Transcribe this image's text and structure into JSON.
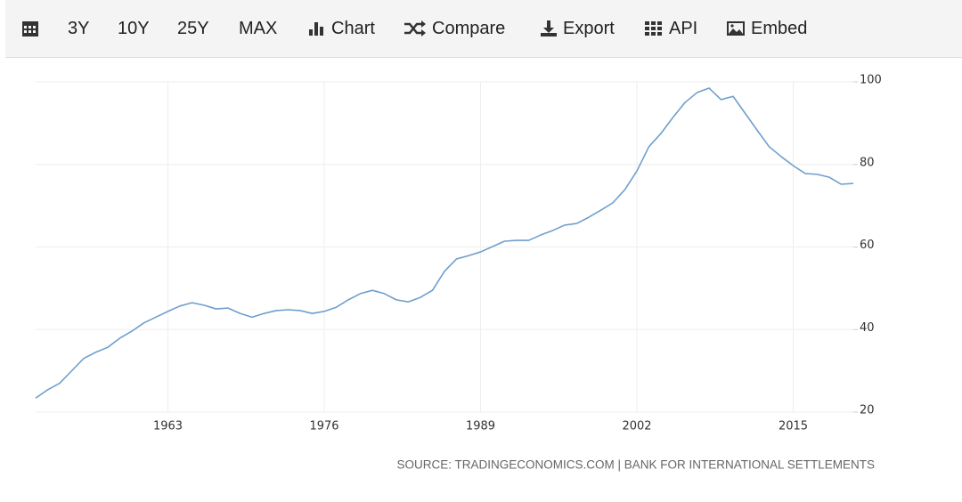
{
  "toolbar": [
    "3Y",
    "10Y",
    "25Y",
    "MAX",
    "Chart",
    "Compare",
    "Export",
    "API",
    "Embed"
  ],
  "chart_data": {
    "type": "line",
    "x": [
      1952,
      1953,
      1954,
      1955,
      1956,
      1957,
      1958,
      1959,
      1960,
      1961,
      1962,
      1963,
      1964,
      1965,
      1966,
      1967,
      1968,
      1969,
      1970,
      1971,
      1972,
      1973,
      1974,
      1975,
      1976,
      1977,
      1978,
      1979,
      1980,
      1981,
      1982,
      1983,
      1984,
      1985,
      1986,
      1987,
      1988,
      1989,
      1990,
      1991,
      1992,
      1993,
      1994,
      1995,
      1996,
      1997,
      1998,
      1999,
      2000,
      2001,
      2002,
      2003,
      2004,
      2005,
      2006,
      2007,
      2008,
      2009,
      2010,
      2011,
      2012,
      2013,
      2014,
      2015,
      2016,
      2017,
      2018,
      2019,
      2020
    ],
    "values": [
      23.4,
      25.4,
      27,
      30,
      33,
      34.5,
      35.7,
      37.9,
      39.6,
      41.6,
      43,
      44.4,
      45.7,
      46.5,
      45.9,
      45,
      45.2,
      43.9,
      43,
      43.9,
      44.6,
      44.8,
      44.6,
      43.9,
      44.4,
      45.4,
      47.2,
      48.7,
      49.5,
      48.7,
      47.2,
      46.7,
      47.8,
      49.5,
      54.1,
      57.1,
      57.9,
      58.8,
      60.1,
      61.4,
      61.6,
      61.6,
      62.9,
      64,
      65.3,
      65.7,
      67.2,
      68.9,
      70.7,
      73.9,
      78.4,
      84.3,
      87.5,
      91.4,
      95,
      97.4,
      98.5,
      95.7,
      96.5,
      92.4,
      88.3,
      84.3,
      81.9,
      79.7,
      77.8,
      77.6,
      76.9,
      75.2,
      75.4
    ],
    "color": "#6f9fcd",
    "xlim": [
      1952,
      2020
    ],
    "xticks": [
      1963,
      1976,
      1989,
      2002,
      2015
    ],
    "ylim": [
      20,
      100
    ],
    "yticks": [
      20,
      40,
      60,
      80,
      100
    ],
    "grid": true,
    "source": "SOURCE: TRADINGECONOMICS.COM | BANK FOR INTERNATIONAL SETTLEMENTS"
  }
}
